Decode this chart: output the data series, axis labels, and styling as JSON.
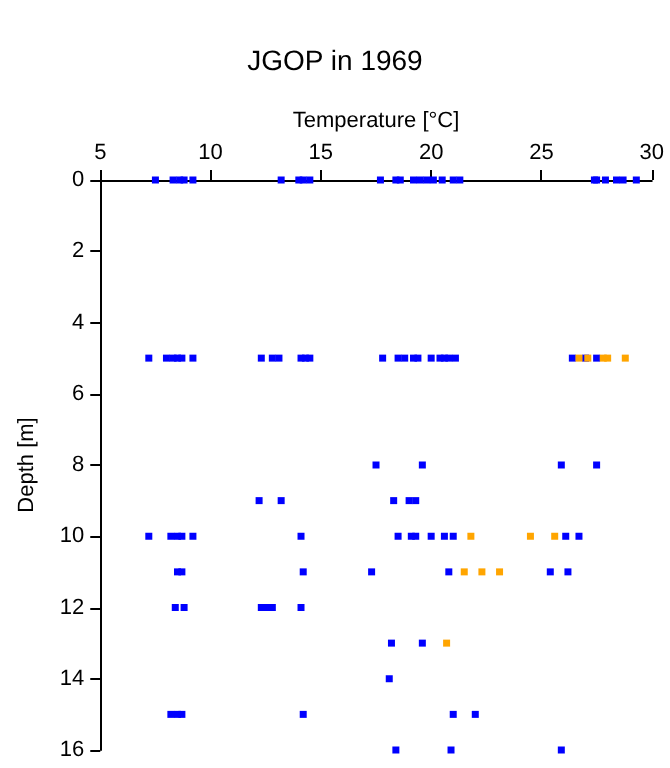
{
  "chart_data": {
    "type": "scatter",
    "title": "JGOP in 1969",
    "xlabel": "Temperature [°C]",
    "ylabel": "Depth [m]",
    "xlim": [
      5,
      30
    ],
    "xticks": [
      5,
      10,
      15,
      20,
      25,
      30
    ],
    "ylim": [
      16,
      0
    ],
    "yticks": [
      0,
      2,
      4,
      6,
      8,
      10,
      12,
      14,
      16
    ],
    "grid": false,
    "marker": "square",
    "series": [
      {
        "color": "#0000ff",
        "x": [
          7.5,
          8.3,
          8.6,
          8.8,
          9.2,
          13.2,
          14.0,
          14.2,
          14.5,
          17.7,
          18.4,
          18.6,
          19.2,
          19.5,
          19.8,
          20.1,
          20.5,
          21.0,
          21.3,
          27.4,
          27.5,
          27.9,
          28.4,
          28.7,
          29.3,
          7.2,
          8.0,
          8.3,
          8.5,
          8.7,
          9.2,
          12.3,
          12.8,
          13.1,
          14.1,
          14.3,
          14.5,
          17.8,
          18.5,
          18.8,
          19.2,
          19.4,
          20.0,
          20.4,
          20.6,
          20.8,
          21.1,
          26.4,
          27.0,
          27.5,
          17.5,
          19.6,
          25.9,
          27.5,
          12.2,
          13.2,
          18.3,
          19.0,
          19.3,
          7.2,
          8.2,
          8.5,
          8.7,
          9.2,
          14.1,
          18.5,
          19.1,
          19.3,
          20.0,
          20.6,
          21.0,
          26.1,
          26.7,
          8.5,
          8.7,
          14.2,
          17.3,
          20.8,
          25.4,
          26.2,
          8.4,
          8.8,
          12.3,
          12.5,
          12.8,
          14.1,
          18.2,
          19.6,
          18.1,
          8.2,
          8.5,
          8.7,
          14.2,
          21.0,
          22.0,
          18.4,
          20.9,
          25.9
        ],
        "values": [
          0,
          0,
          0,
          0,
          0,
          0,
          0,
          0,
          0,
          0,
          0,
          0,
          0,
          0,
          0,
          0,
          0,
          0,
          0,
          0,
          0,
          0,
          0,
          0,
          0,
          5,
          5,
          5,
          5,
          5,
          5,
          5,
          5,
          5,
          5,
          5,
          5,
          5,
          5,
          5,
          5,
          5,
          5,
          5,
          5,
          5,
          5,
          5,
          5,
          5,
          8,
          8,
          8,
          8,
          9,
          9,
          9,
          9,
          9,
          10,
          10,
          10,
          10,
          10,
          10,
          10,
          10,
          10,
          10,
          10,
          10,
          10,
          10,
          11,
          11,
          11,
          11,
          11,
          11,
          11,
          12,
          12,
          12,
          12,
          12,
          12,
          13,
          13,
          14,
          15,
          15,
          15,
          15,
          15,
          15,
          16,
          16,
          16
        ]
      },
      {
        "color": "#ffa500",
        "x": [
          26.7,
          27.1,
          27.8,
          28.0,
          28.8,
          21.8,
          24.5,
          25.6,
          21.5,
          22.3,
          23.1,
          20.7
        ],
        "values": [
          5,
          5,
          5,
          5,
          5,
          10,
          10,
          10,
          11,
          11,
          11,
          13
        ]
      }
    ]
  }
}
